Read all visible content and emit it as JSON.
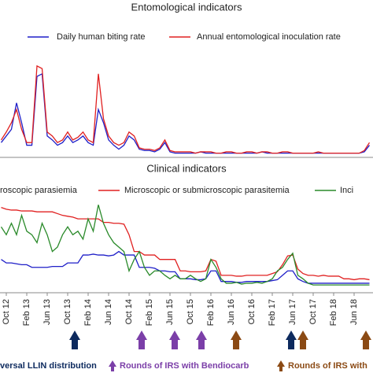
{
  "chart_data": [
    {
      "type": "line",
      "title": "Entomological indicators",
      "ylim": [
        0,
        100
      ],
      "series": [
        {
          "name": "Daily human biting rate",
          "color": "#1f1fc8",
          "values": [
            10,
            15,
            20,
            40,
            25,
            8,
            8,
            60,
            62,
            15,
            12,
            8,
            10,
            15,
            10,
            12,
            15,
            10,
            8,
            35,
            25,
            12,
            8,
            5,
            8,
            15,
            12,
            5,
            4,
            4,
            3,
            5,
            10,
            3,
            2,
            2,
            2,
            2,
            2,
            3,
            2,
            2,
            2,
            2,
            2,
            2,
            2,
            2,
            2,
            2,
            2,
            3,
            2,
            2,
            2,
            2,
            2,
            2,
            2,
            2,
            2,
            2,
            2,
            2,
            2,
            2,
            2,
            2,
            2,
            2,
            2,
            3,
            8
          ]
        },
        {
          "name": "Annual entomological inoculation rate",
          "color": "#e02020",
          "values": [
            12,
            18,
            25,
            35,
            20,
            10,
            10,
            68,
            66,
            18,
            15,
            10,
            12,
            18,
            12,
            14,
            18,
            12,
            10,
            62,
            28,
            15,
            10,
            8,
            10,
            18,
            15,
            6,
            5,
            5,
            4,
            6,
            12,
            4,
            3,
            3,
            3,
            3,
            2,
            3,
            3,
            3,
            2,
            2,
            3,
            3,
            2,
            2,
            3,
            3,
            2,
            3,
            3,
            2,
            2,
            3,
            3,
            2,
            2,
            2,
            2,
            2,
            3,
            2,
            2,
            2,
            2,
            2,
            2,
            2,
            2,
            4,
            10
          ]
        }
      ]
    },
    {
      "type": "line",
      "title": "Clinical indicators",
      "ylim": [
        0,
        100
      ],
      "categories": [
        null,
        "Oct 12",
        null,
        null,
        null,
        "Feb 13",
        null,
        null,
        null,
        "Jun 13",
        null,
        null,
        null,
        "Oct 13",
        null,
        null,
        null,
        "Feb 14",
        null,
        null,
        null,
        "Jun 14",
        null,
        null,
        null,
        "Oct 14",
        null,
        null,
        null,
        "Feb 15",
        null,
        null,
        null,
        "Jun 15",
        null,
        null,
        null,
        "Oct 15",
        null,
        null,
        null,
        "Feb 16",
        null,
        null,
        null,
        "Jun 16",
        null,
        null,
        null,
        "Oct 16",
        null,
        null,
        null,
        "Feb 17",
        null,
        null,
        null,
        "Jun 17",
        null,
        null,
        null,
        "Oct 17",
        null,
        null,
        null,
        "Feb 18",
        null,
        null,
        null,
        "Jun 18",
        null,
        null,
        null
      ],
      "series": [
        {
          "name": "roscopic parasiemia",
          "color": "#1f1fc8",
          "values": [
            36,
            32,
            32,
            31,
            30,
            30,
            27,
            27,
            27,
            27,
            28,
            28,
            28,
            32,
            32,
            32,
            41,
            41,
            42,
            41,
            41,
            40,
            41,
            45,
            41,
            41,
            41,
            27,
            27,
            27,
            26,
            23,
            23,
            22,
            22,
            14,
            14,
            14,
            13,
            13,
            14,
            23,
            23,
            11,
            11,
            11,
            10,
            10,
            11,
            11,
            11,
            11,
            11,
            12,
            13,
            18,
            23,
            23,
            14,
            11,
            9,
            9,
            9,
            9,
            9,
            9,
            9,
            9,
            9,
            9,
            9,
            9,
            9
          ]
        },
        {
          "name": "Microscopic or submicroscopic parasitemia",
          "color": "#e02020",
          "values": [
            95,
            93,
            92,
            92,
            91,
            91,
            91,
            90,
            90,
            90,
            90,
            88,
            86,
            85,
            84,
            82,
            82,
            82,
            82,
            82,
            78,
            78,
            77,
            77,
            76,
            64,
            45,
            45,
            41,
            41,
            41,
            36,
            36,
            36,
            36,
            23,
            23,
            22,
            22,
            22,
            23,
            36,
            34,
            18,
            18,
            18,
            17,
            17,
            18,
            18,
            18,
            18,
            18,
            20,
            22,
            30,
            40,
            41,
            25,
            20,
            18,
            18,
            17,
            18,
            17,
            17,
            17,
            14,
            14,
            13,
            14,
            14,
            13
          ]
        },
        {
          "name": "Inci",
          "color": "#2a8a2a",
          "values": [
            73,
            64,
            77,
            64,
            86,
            68,
            64,
            55,
            77,
            64,
            45,
            50,
            64,
            73,
            64,
            68,
            59,
            82,
            68,
            98,
            77,
            64,
            55,
            50,
            45,
            23,
            36,
            45,
            27,
            18,
            23,
            23,
            18,
            14,
            18,
            14,
            14,
            18,
            14,
            11,
            14,
            36,
            27,
            14,
            9,
            9,
            10,
            8,
            9,
            9,
            10,
            9,
            11,
            14,
            23,
            27,
            36,
            43,
            18,
            14,
            9,
            7,
            7,
            7,
            7,
            7,
            7,
            7,
            7,
            7,
            7,
            7,
            7
          ]
        }
      ]
    }
  ],
  "annotations": [
    "versal LLIN distribution",
    "Rounds of IRS with Bendiocarb",
    "Rounds of IRS with"
  ]
}
